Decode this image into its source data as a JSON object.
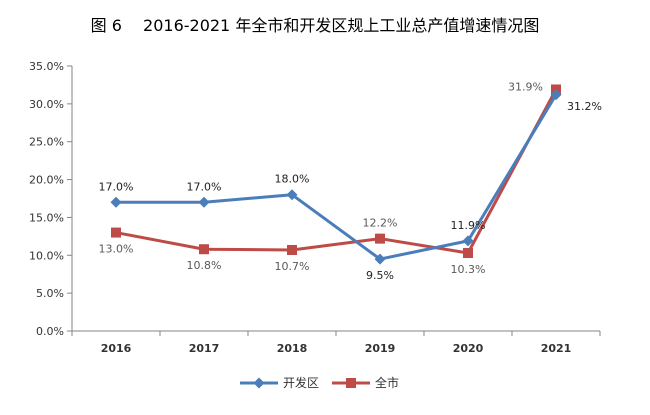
{
  "chart_data": {
    "type": "line",
    "title": "图 6　 2016-2021 年全市和开发区规上工业总产值增速情况图",
    "categories": [
      "2016",
      "2017",
      "2018",
      "2019",
      "2020",
      "2021"
    ],
    "ylim": [
      0,
      35
    ],
    "yticks": [
      "0.0%",
      "5.0%",
      "10.0%",
      "15.0%",
      "20.0%",
      "25.0%",
      "30.0%",
      "35.0%"
    ],
    "grid": false,
    "legend_position": "bottom",
    "series": [
      {
        "name": "开发区",
        "marker": "diamond",
        "color": "#4a7ebb",
        "label_color": "#222222",
        "values": [
          17.0,
          17.0,
          18.0,
          9.5,
          11.9,
          31.2
        ],
        "labels": [
          "17.0%",
          "17.0%",
          "18.0%",
          "9.5%",
          "11.9%",
          "31.2%"
        ],
        "label_side": [
          "above",
          "above",
          "above",
          "below",
          "above",
          "below"
        ]
      },
      {
        "name": "全市",
        "marker": "square",
        "color": "#be4b48",
        "label_color": "#595959",
        "values": [
          13.0,
          10.8,
          10.7,
          12.2,
          10.3,
          31.9
        ],
        "labels": [
          "13.0%",
          "10.8%",
          "10.7%",
          "12.2%",
          "10.3%",
          "31.9%"
        ],
        "label_side": [
          "below",
          "below",
          "below",
          "above",
          "below",
          "above"
        ]
      }
    ]
  }
}
